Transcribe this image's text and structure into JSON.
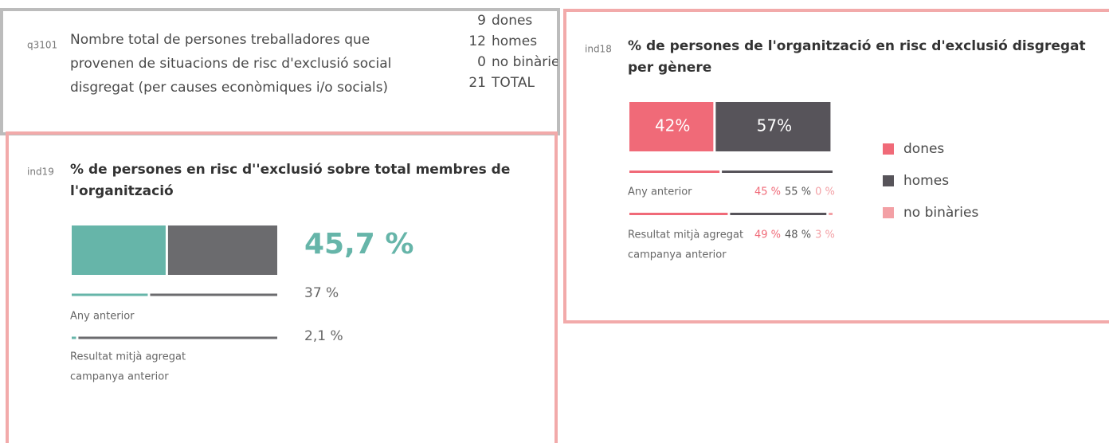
{
  "q3101": {
    "code": "q3101",
    "text": [
      "Nombre total de persones treballadores que",
      "provenen de situacions de risc d'exclusió social",
      "disgregat (per causes econòmiques i/o socials)"
    ],
    "rows": [
      {
        "value": 9,
        "label": "dones"
      },
      {
        "value": 12,
        "label": "homes"
      },
      {
        "value": 0,
        "label": "no binàries"
      },
      {
        "value": 21,
        "label": "TOTAL"
      }
    ]
  },
  "ind19": {
    "code": "ind19",
    "title": [
      "% de persones en risc d''exclusió sobre total membres de",
      "l'organització"
    ],
    "color": "#66b5a9",
    "rest_color": "#6b6b6e",
    "xlim": [
      0,
      100
    ],
    "values": [
      45.7,
      37,
      2.1
    ],
    "value_labels": [
      "45,7 %",
      "37 %",
      "2,1 %"
    ],
    "row_labels": [
      "Any anterior",
      "Resultat mitjà agregat",
      "campanya anterior"
    ]
  },
  "ind18": {
    "code": "ind18",
    "title": [
      "% de persones de l'organització en risc d'exclusió disgregat",
      "per gènere"
    ],
    "xlim": [
      0,
      100
    ],
    "row_labels": [
      "Any anterior",
      "Resultat mitjà agregat",
      "campanya anterior"
    ],
    "series": [
      {
        "name": "dones",
        "color": "#f06a78",
        "values": [
          42,
          45,
          49
        ],
        "value_labels": [
          "42%",
          "45 %",
          "49 %"
        ]
      },
      {
        "name": "homes",
        "color": "#57545a",
        "values": [
          57,
          55,
          48
        ],
        "value_labels": [
          "57%",
          "55 %",
          "48 %"
        ]
      },
      {
        "name": "no binàries",
        "color": "#f3a0a5",
        "values": [
          null,
          0,
          3
        ],
        "value_labels": [
          null,
          "0 %",
          "3 %"
        ]
      }
    ]
  }
}
